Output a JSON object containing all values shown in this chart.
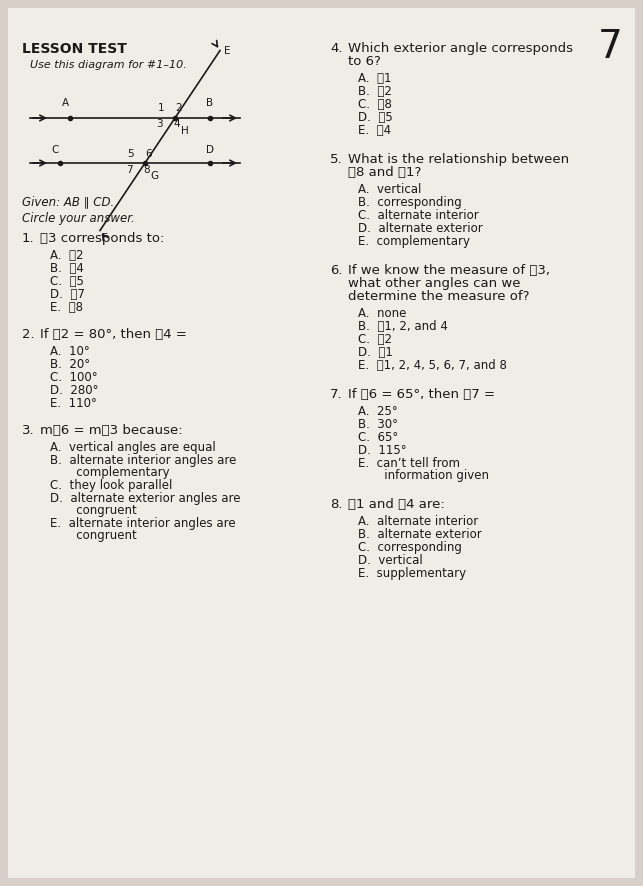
{
  "bg_color": "#d8d0c8",
  "paper_color": "#f0ece6",
  "title": "LESSON TEST",
  "page_number": "7",
  "subtitle": "Use this diagram for #1–10.",
  "given": "Given: AB ∥ CD.",
  "circle_instruction": "Circle your answer.",
  "questions_left": [
    {
      "num": "1.",
      "text": "⌣3 corresponds to:",
      "choices": [
        "A.  ⌣2",
        "B.  ⌣4",
        "C.  ⌣5",
        "D.  ⌣7",
        "E.  ⌣8"
      ]
    },
    {
      "num": "2.",
      "text": "If ⌣2 = 80°, then ⌣4 =",
      "choices": [
        "A.  10°",
        "B.  20°",
        "C.  100°",
        "D.  280°",
        "E.  110°"
      ]
    },
    {
      "num": "3.",
      "text": "m⌣6 = m⌣3 because:",
      "choices": [
        "A.  vertical angles are equal",
        "B.  alternate interior angles are\n       complementary",
        "C.  they look parallel",
        "D.  alternate exterior angles are\n       congruent",
        "E.  alternate interior angles are\n       congruent"
      ]
    }
  ],
  "questions_right": [
    {
      "num": "4.",
      "text": "Which exterior angle corresponds\nto 6?",
      "choices": [
        "A.  ⌣1",
        "B.  ⌣2",
        "C.  ⌣8",
        "D.  ⌣5",
        "E.  ⌣4"
      ]
    },
    {
      "num": "5.",
      "text": "What is the relationship between\n⌣8 and ⌣1?",
      "choices": [
        "A.  vertical",
        "B.  corresponding",
        "C.  alternate interior",
        "D.  alternate exterior",
        "E.  complementary"
      ]
    },
    {
      "num": "6.",
      "text": "If we know the measure of ⌣3,\nwhat other angles can we\ndetermine the measure of?",
      "choices": [
        "A.  none",
        "B.  ⌣1, 2, and 4",
        "C.  ⌣2",
        "D.  ⌣1",
        "E.  ⌣1, 2, 4, 5, 6, 7, and 8"
      ]
    },
    {
      "num": "7.",
      "text": "If ⌣6 = 65°, then ⌣7 =",
      "choices": [
        "A.  25°",
        "B.  30°",
        "C.  65°",
        "D.  115°",
        "E.  can’t tell from\n       information given"
      ]
    },
    {
      "num": "8.",
      "text": "⌣1 and ⌣4 are:",
      "choices": [
        "A.  alternate interior",
        "B.  alternate exterior",
        "C.  corresponding",
        "D.  vertical",
        "E.  supplementary"
      ]
    }
  ]
}
